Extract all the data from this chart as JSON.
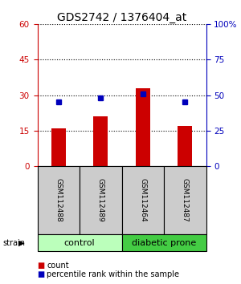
{
  "title": "GDS2742 / 1376404_at",
  "samples": [
    "GSM112488",
    "GSM112489",
    "GSM112464",
    "GSM112487"
  ],
  "counts": [
    16,
    21,
    33,
    17
  ],
  "percentiles": [
    45,
    48,
    51,
    45
  ],
  "ylim_left": [
    0,
    60
  ],
  "ylim_right": [
    0,
    100
  ],
  "yticks_left": [
    0,
    15,
    30,
    45,
    60
  ],
  "yticks_right": [
    0,
    25,
    50,
    75,
    100
  ],
  "bar_color": "#cc0000",
  "dot_color": "#0000bb",
  "groups": [
    {
      "label": "control",
      "indices": [
        0,
        1
      ],
      "color": "#bbffbb"
    },
    {
      "label": "diabetic prone",
      "indices": [
        2,
        3
      ],
      "color": "#44cc44"
    }
  ],
  "sample_box_color": "#cccccc",
  "left_axis_color": "#cc0000",
  "right_axis_color": "#0000bb",
  "legend_count_color": "#cc0000",
  "legend_pct_color": "#0000bb",
  "title_fontsize": 10,
  "bar_width": 0.35
}
